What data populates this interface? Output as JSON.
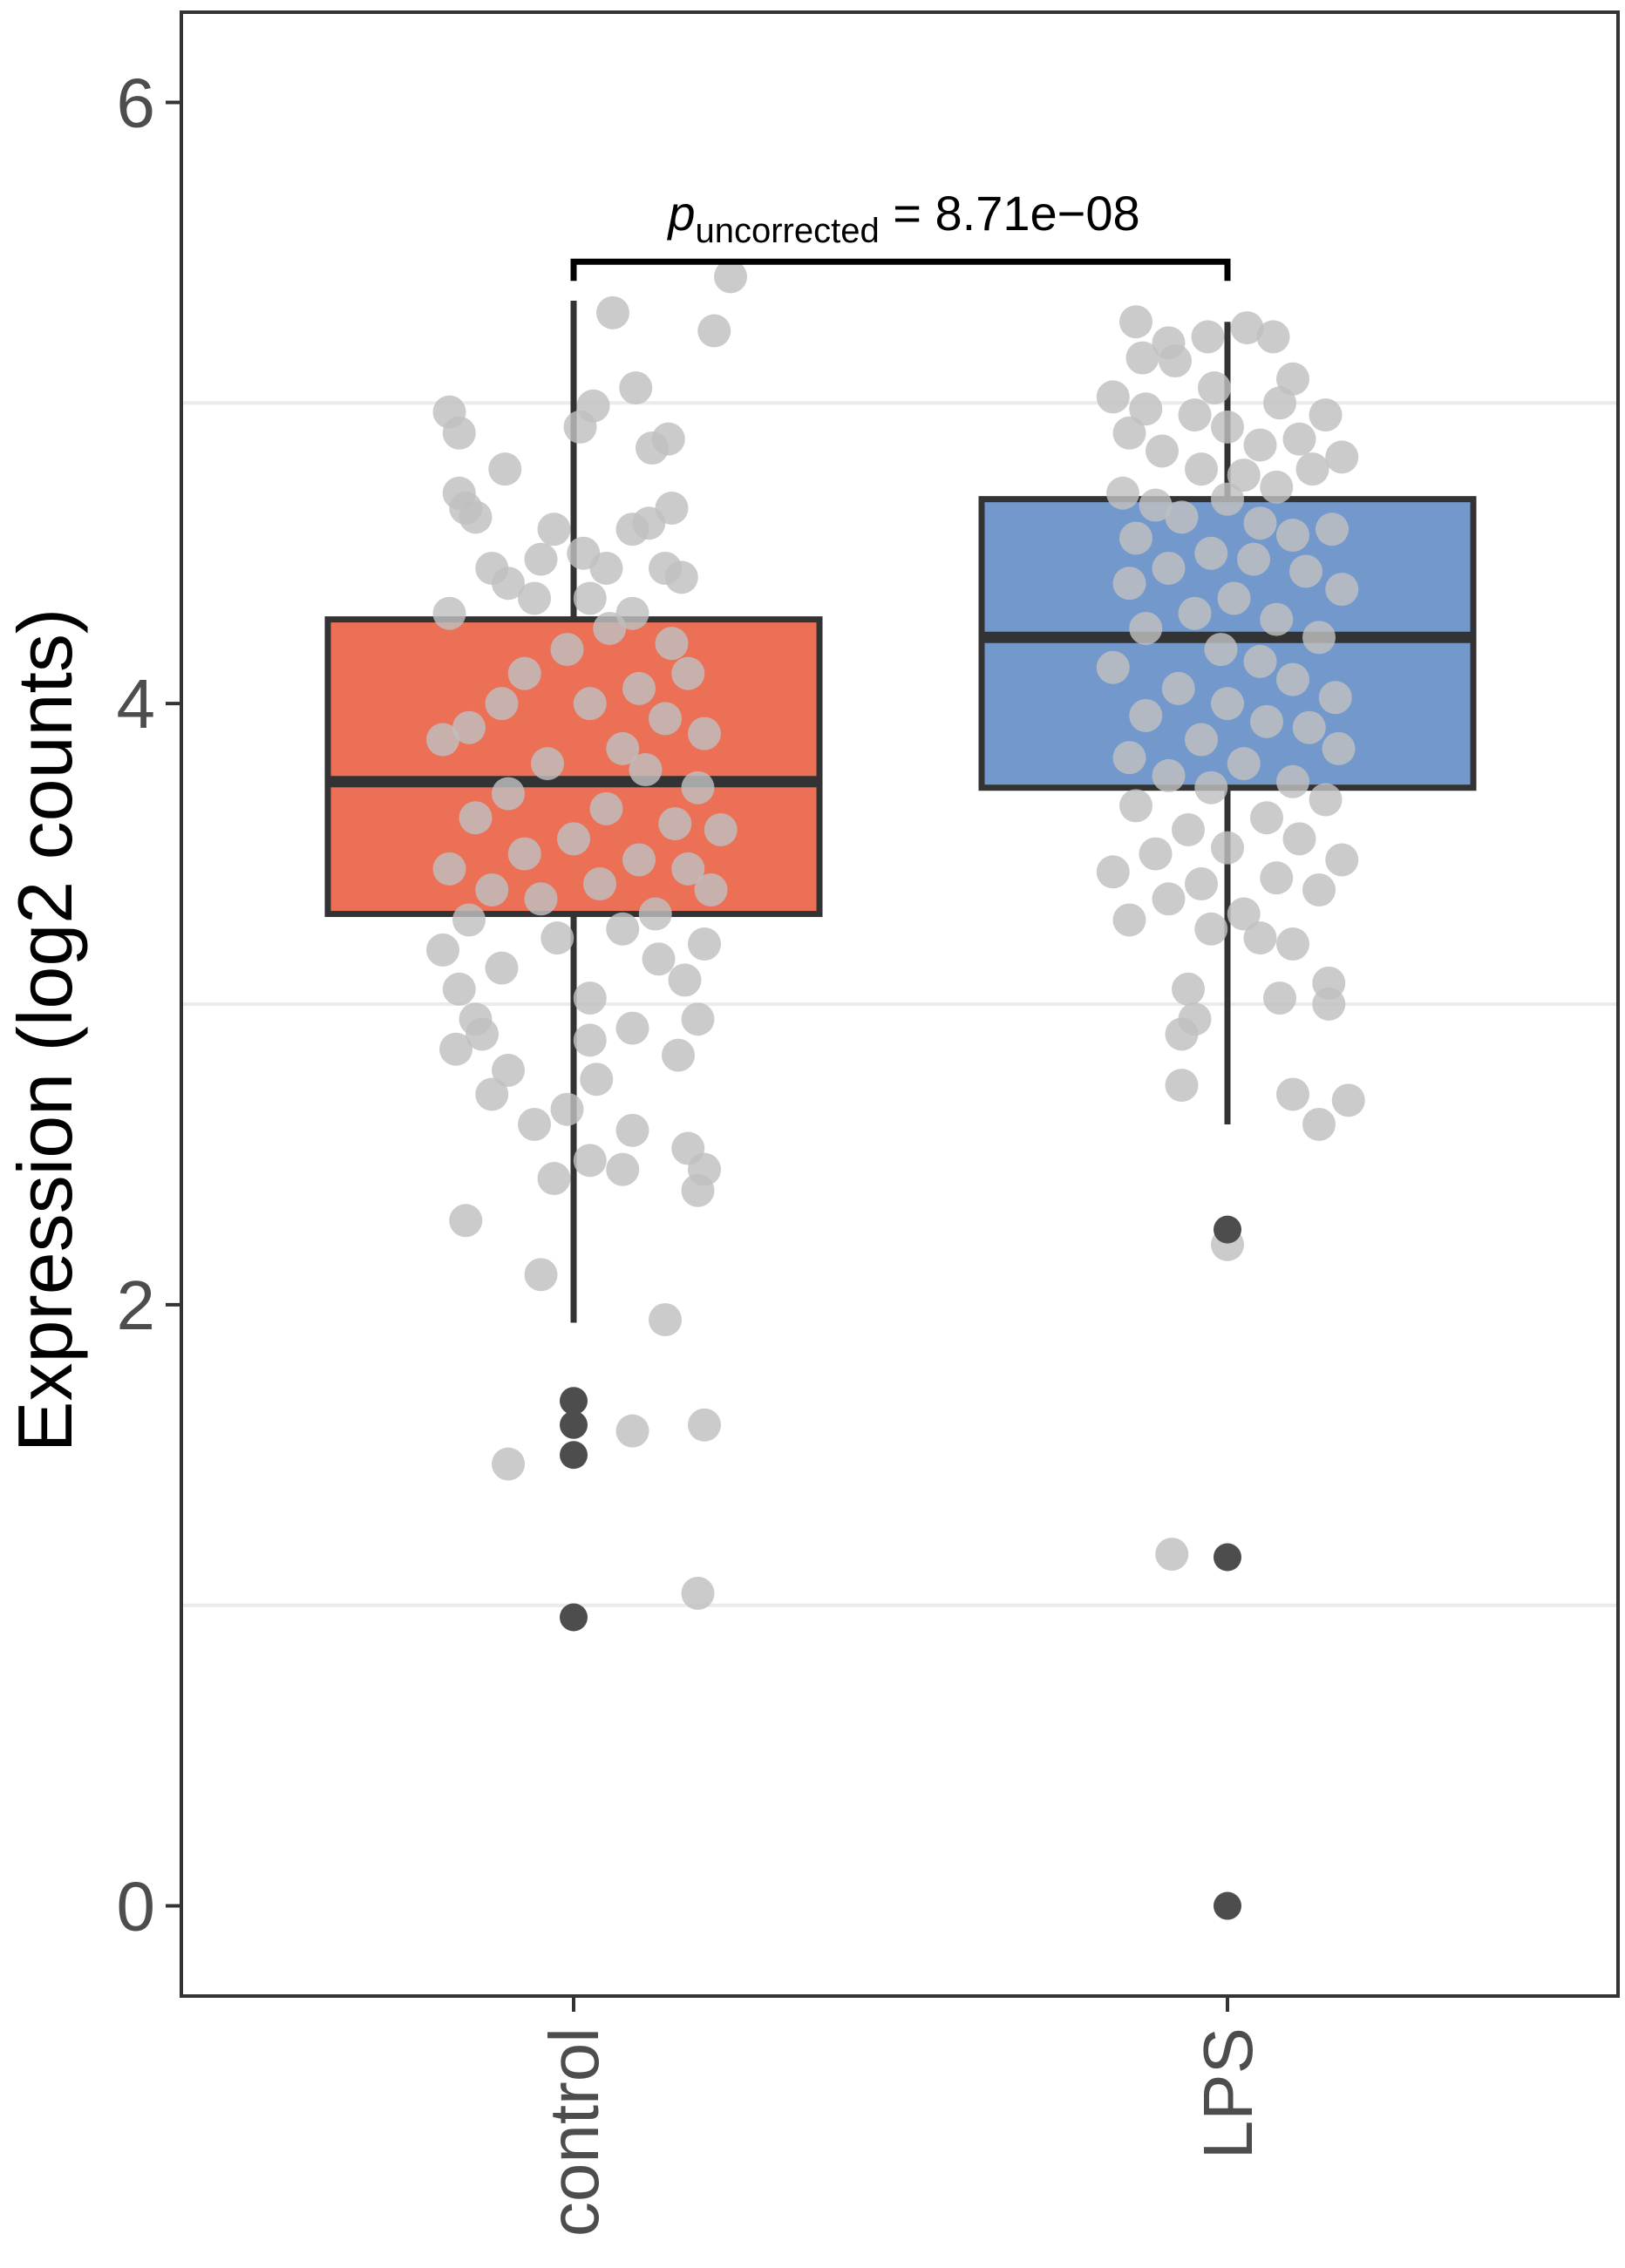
{
  "chart_data": {
    "type": "boxplot",
    "title": "",
    "xlabel": "",
    "ylabel": "Expression (log2 counts)",
    "ylim": [
      -0.3,
      6.3
    ],
    "yticks": [
      0,
      2,
      4,
      6
    ],
    "ytick_labels": [
      "0",
      "2",
      "4",
      "6"
    ],
    "grid": "horizontal minor",
    "categories": [
      "control",
      "LPS"
    ],
    "groups": [
      {
        "name": "control",
        "color": "#eb7055",
        "q1": 3.3,
        "median": 3.74,
        "q3": 4.28,
        "whisker_low": 1.94,
        "whisker_high": 5.34,
        "outliers": [
          1.68,
          1.6,
          1.5,
          0.96
        ],
        "points": [
          [
            0.12,
            5.3
          ],
          [
            0.48,
            5.42
          ],
          [
            0.43,
            5.24
          ],
          [
            0.19,
            5.05
          ],
          [
            -0.38,
            4.97
          ],
          [
            -0.35,
            4.9
          ],
          [
            0.02,
            4.92
          ],
          [
            0.06,
            4.99
          ],
          [
            0.29,
            4.88
          ],
          [
            0.24,
            4.85
          ],
          [
            -0.21,
            4.78
          ],
          [
            -0.35,
            4.7
          ],
          [
            -0.33,
            4.65
          ],
          [
            -0.3,
            4.62
          ],
          [
            0.3,
            4.65
          ],
          [
            0.23,
            4.6
          ],
          [
            0.18,
            4.58
          ],
          [
            -0.06,
            4.58
          ],
          [
            0.03,
            4.5
          ],
          [
            -0.1,
            4.48
          ],
          [
            0.1,
            4.45
          ],
          [
            0.28,
            4.45
          ],
          [
            0.33,
            4.42
          ],
          [
            -0.2,
            4.4
          ],
          [
            -0.25,
            4.45
          ],
          [
            0.05,
            4.35
          ],
          [
            -0.12,
            4.35
          ],
          [
            0.18,
            4.3
          ],
          [
            -0.38,
            4.3
          ],
          [
            0.3,
            4.2
          ],
          [
            0.11,
            4.25
          ],
          [
            -0.02,
            4.18
          ],
          [
            -0.15,
            4.1
          ],
          [
            0.2,
            4.05
          ],
          [
            0.35,
            4.1
          ],
          [
            -0.22,
            4.0
          ],
          [
            0.05,
            4.0
          ],
          [
            0.28,
            3.95
          ],
          [
            0.4,
            3.9
          ],
          [
            -0.4,
            3.88
          ],
          [
            -0.32,
            3.92
          ],
          [
            0.15,
            3.85
          ],
          [
            -0.08,
            3.8
          ],
          [
            0.22,
            3.78
          ],
          [
            0.38,
            3.72
          ],
          [
            -0.2,
            3.7
          ],
          [
            0.1,
            3.65
          ],
          [
            -0.3,
            3.62
          ],
          [
            0.31,
            3.6
          ],
          [
            0.45,
            3.58
          ],
          [
            0.0,
            3.55
          ],
          [
            -0.15,
            3.5
          ],
          [
            0.2,
            3.48
          ],
          [
            -0.38,
            3.45
          ],
          [
            0.35,
            3.45
          ],
          [
            0.08,
            3.4
          ],
          [
            -0.25,
            3.38
          ],
          [
            0.42,
            3.38
          ],
          [
            -0.1,
            3.35
          ],
          [
            0.25,
            3.3
          ],
          [
            -0.32,
            3.28
          ],
          [
            0.15,
            3.25
          ],
          [
            0.4,
            3.2
          ],
          [
            -0.05,
            3.22
          ],
          [
            -0.4,
            3.18
          ],
          [
            0.26,
            3.15
          ],
          [
            -0.22,
            3.12
          ],
          [
            0.34,
            3.08
          ],
          [
            -0.35,
            3.05
          ],
          [
            0.05,
            3.02
          ],
          [
            -0.3,
            2.95
          ],
          [
            -0.28,
            2.9
          ],
          [
            0.18,
            2.92
          ],
          [
            0.05,
            2.88
          ],
          [
            -0.36,
            2.85
          ],
          [
            0.38,
            2.95
          ],
          [
            0.32,
            2.83
          ],
          [
            -0.2,
            2.78
          ],
          [
            0.07,
            2.75
          ],
          [
            -0.02,
            2.65
          ],
          [
            -0.25,
            2.7
          ],
          [
            0.18,
            2.58
          ],
          [
            -0.12,
            2.6
          ],
          [
            0.35,
            2.52
          ],
          [
            0.4,
            2.45
          ],
          [
            0.05,
            2.48
          ],
          [
            -0.06,
            2.42
          ],
          [
            0.15,
            2.45
          ],
          [
            0.38,
            2.38
          ],
          [
            -0.33,
            2.28
          ],
          [
            -0.1,
            2.1
          ],
          [
            0.28,
            1.95
          ],
          [
            -0.2,
            1.47
          ],
          [
            0.4,
            1.6
          ],
          [
            0.18,
            1.58
          ],
          [
            0.38,
            1.04
          ]
        ]
      },
      {
        "name": "LPS",
        "color": "#7399cc",
        "q1": 3.72,
        "median": 4.22,
        "q3": 4.68,
        "whisker_low": 2.6,
        "whisker_high": 5.27,
        "outliers": [
          2.25,
          1.16,
          0.0
        ],
        "points": [
          [
            -0.28,
            5.27
          ],
          [
            -0.18,
            5.2
          ],
          [
            -0.26,
            5.15
          ],
          [
            -0.06,
            5.22
          ],
          [
            -0.16,
            5.14
          ],
          [
            0.06,
            5.25
          ],
          [
            0.14,
            5.22
          ],
          [
            0.2,
            5.08
          ],
          [
            -0.04,
            5.05
          ],
          [
            0.16,
            5.0
          ],
          [
            -0.35,
            5.02
          ],
          [
            -0.25,
            4.98
          ],
          [
            -0.1,
            4.96
          ],
          [
            0.3,
            4.96
          ],
          [
            -0.3,
            4.9
          ],
          [
            0.0,
            4.92
          ],
          [
            0.1,
            4.86
          ],
          [
            0.22,
            4.88
          ],
          [
            0.35,
            4.82
          ],
          [
            -0.2,
            4.84
          ],
          [
            -0.08,
            4.78
          ],
          [
            0.05,
            4.76
          ],
          [
            0.15,
            4.72
          ],
          [
            0.26,
            4.78
          ],
          [
            -0.32,
            4.7
          ],
          [
            -0.22,
            4.66
          ],
          [
            0.0,
            4.68
          ],
          [
            -0.14,
            4.62
          ],
          [
            0.1,
            4.6
          ],
          [
            0.2,
            4.56
          ],
          [
            -0.28,
            4.55
          ],
          [
            0.32,
            4.58
          ],
          [
            -0.05,
            4.5
          ],
          [
            0.08,
            4.48
          ],
          [
            -0.18,
            4.45
          ],
          [
            0.24,
            4.44
          ],
          [
            -0.3,
            4.4
          ],
          [
            0.35,
            4.38
          ],
          [
            0.02,
            4.35
          ],
          [
            -0.1,
            4.3
          ],
          [
            0.15,
            4.28
          ],
          [
            -0.25,
            4.25
          ],
          [
            0.28,
            4.22
          ],
          [
            -0.02,
            4.18
          ],
          [
            0.1,
            4.14
          ],
          [
            -0.35,
            4.12
          ],
          [
            0.2,
            4.08
          ],
          [
            -0.15,
            4.05
          ],
          [
            0.33,
            4.02
          ],
          [
            0.0,
            4.0
          ],
          [
            -0.25,
            3.96
          ],
          [
            0.12,
            3.94
          ],
          [
            0.25,
            3.92
          ],
          [
            -0.08,
            3.88
          ],
          [
            0.34,
            3.85
          ],
          [
            -0.3,
            3.82
          ],
          [
            0.05,
            3.8
          ],
          [
            -0.18,
            3.76
          ],
          [
            0.2,
            3.74
          ],
          [
            -0.05,
            3.72
          ],
          [
            0.3,
            3.68
          ],
          [
            -0.28,
            3.66
          ],
          [
            0.12,
            3.62
          ],
          [
            -0.12,
            3.58
          ],
          [
            0.22,
            3.55
          ],
          [
            0.0,
            3.52
          ],
          [
            -0.22,
            3.5
          ],
          [
            0.35,
            3.48
          ],
          [
            -0.35,
            3.44
          ],
          [
            0.15,
            3.42
          ],
          [
            -0.08,
            3.4
          ],
          [
            0.28,
            3.38
          ],
          [
            -0.18,
            3.35
          ],
          [
            0.05,
            3.3
          ],
          [
            -0.3,
            3.28
          ],
          [
            -0.05,
            3.25
          ],
          [
            0.1,
            3.22
          ],
          [
            0.2,
            3.2
          ],
          [
            -0.12,
            3.05
          ],
          [
            -0.1,
            2.95
          ],
          [
            0.16,
            3.02
          ],
          [
            0.31,
            3.07
          ],
          [
            -0.14,
            2.9
          ],
          [
            0.31,
            3.0
          ],
          [
            0.2,
            2.7
          ],
          [
            -0.14,
            2.73
          ],
          [
            0.37,
            2.68
          ],
          [
            0.28,
            2.6
          ],
          [
            0.0,
            2.2
          ],
          [
            -0.17,
            1.17
          ]
        ]
      }
    ],
    "comparison": {
      "groups": [
        "control",
        "LPS"
      ],
      "label_main": "p",
      "label_sub": "uncorrected",
      "label_rest": " = 8.71e−08",
      "y": 5.47
    }
  },
  "style": {
    "point_color": "#bfbfbf",
    "outlier_color": "#4d4d4d",
    "line_color": "#333333",
    "grid_color": "#ebebeb"
  }
}
